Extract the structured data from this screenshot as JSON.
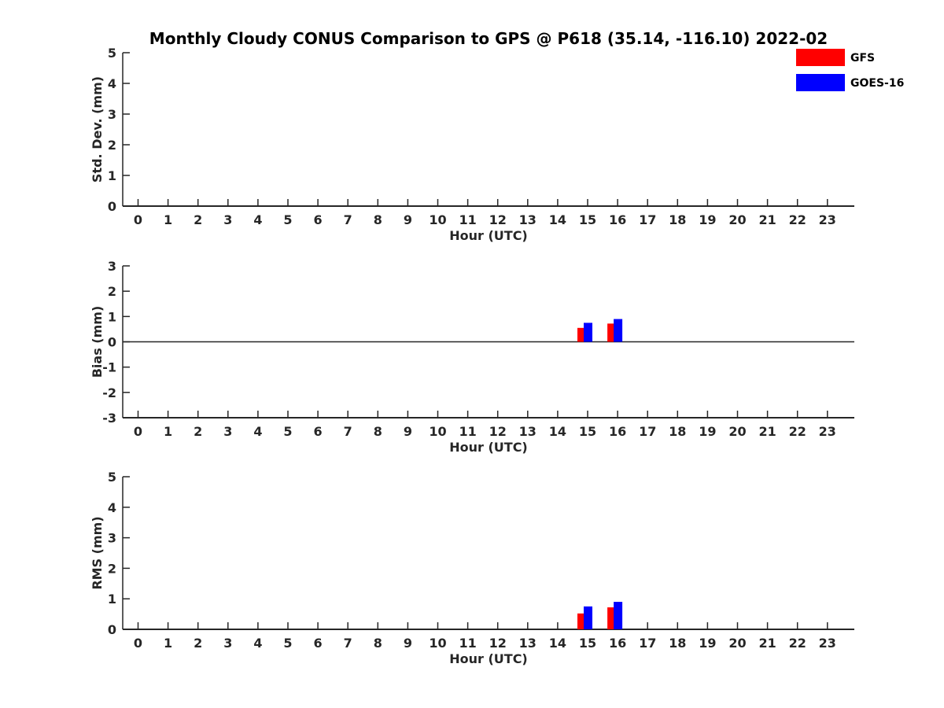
{
  "chart_data": {
    "type": "bar",
    "title": "Monthly Cloudy CONUS Comparison to GPS @ P618 (35.14, -116.10) 2022-02",
    "legend": {
      "placement": "top-right",
      "entries": [
        {
          "name": "GFS",
          "color": "#ff0000"
        },
        {
          "name": "GOES-16",
          "color": "#0000ff"
        }
      ]
    },
    "categories": [
      "0",
      "1",
      "2",
      "3",
      "4",
      "5",
      "6",
      "7",
      "8",
      "9",
      "10",
      "11",
      "12",
      "13",
      "14",
      "15",
      "16",
      "17",
      "18",
      "19",
      "20",
      "21",
      "22",
      "23"
    ],
    "panels": [
      {
        "id": "std",
        "ylabel": "Std. Dev. (mm)",
        "xlabel": "Hour (UTC)",
        "ylim": [
          0,
          5
        ],
        "yticks": [
          "0",
          "1",
          "2",
          "3",
          "4",
          "5"
        ],
        "zero_line": false,
        "series": [
          {
            "name": "GFS",
            "values": [
              null,
              null,
              null,
              null,
              null,
              null,
              null,
              null,
              null,
              null,
              null,
              null,
              null,
              null,
              null,
              null,
              null,
              null,
              null,
              null,
              null,
              null,
              null,
              null
            ]
          },
          {
            "name": "GOES-16",
            "values": [
              null,
              null,
              null,
              null,
              null,
              null,
              null,
              null,
              null,
              null,
              null,
              null,
              null,
              null,
              null,
              null,
              null,
              null,
              null,
              null,
              null,
              null,
              null,
              null
            ]
          }
        ]
      },
      {
        "id": "bias",
        "ylabel": "Bias (mm)",
        "xlabel": "Hour (UTC)",
        "ylim": [
          -3,
          3
        ],
        "yticks": [
          "-3",
          "-2",
          "-1",
          "0",
          "1",
          "2",
          "3"
        ],
        "zero_line": true,
        "series": [
          {
            "name": "GFS",
            "values": [
              null,
              null,
              null,
              null,
              null,
              null,
              null,
              null,
              null,
              null,
              null,
              null,
              null,
              null,
              null,
              0.55,
              0.72,
              null,
              null,
              null,
              null,
              null,
              null,
              null
            ]
          },
          {
            "name": "GOES-16",
            "values": [
              null,
              null,
              null,
              null,
              null,
              null,
              null,
              null,
              null,
              null,
              null,
              null,
              null,
              null,
              null,
              0.75,
              0.9,
              null,
              null,
              null,
              null,
              null,
              null,
              null
            ]
          }
        ]
      },
      {
        "id": "rms",
        "ylabel": "RMS (mm)",
        "xlabel": "Hour (UTC)",
        "ylim": [
          0,
          5
        ],
        "yticks": [
          "0",
          "1",
          "2",
          "3",
          "4",
          "5"
        ],
        "zero_line": false,
        "series": [
          {
            "name": "GFS",
            "values": [
              null,
              null,
              null,
              null,
              null,
              null,
              null,
              null,
              null,
              null,
              null,
              null,
              null,
              null,
              null,
              0.52,
              0.72,
              null,
              null,
              null,
              null,
              null,
              null,
              null
            ]
          },
          {
            "name": "GOES-16",
            "values": [
              null,
              null,
              null,
              null,
              null,
              null,
              null,
              null,
              null,
              null,
              null,
              null,
              null,
              null,
              null,
              0.75,
              0.9,
              null,
              null,
              null,
              null,
              null,
              null,
              null
            ]
          }
        ]
      }
    ]
  }
}
